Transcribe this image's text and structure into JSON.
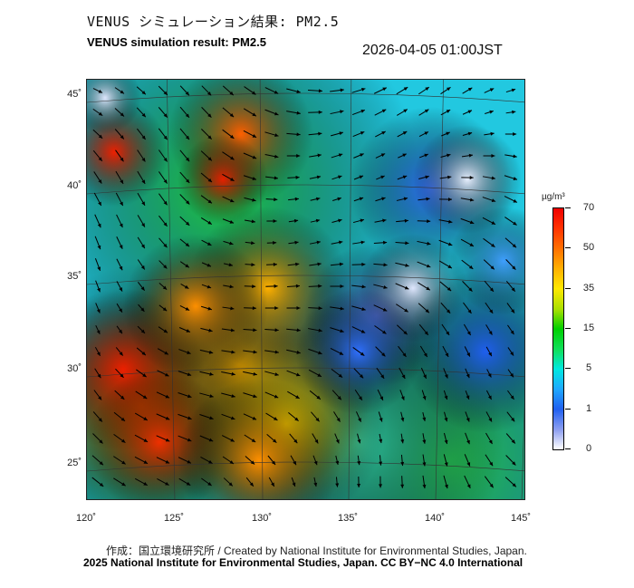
{
  "header": {
    "title_ja": "VENUS シミュレーション結果: PM2.5",
    "title_en": "VENUS simulation result: PM2.5",
    "timestamp": "2026-04-05 01:00JST"
  },
  "map": {
    "lat_labels": [
      "45˚",
      "40˚",
      "35˚",
      "30˚",
      "25˚"
    ],
    "lon_labels": [
      "120˚",
      "125˚",
      "130˚",
      "135˚",
      "140˚",
      "145˚"
    ]
  },
  "colorbar": {
    "unit": "µg/m³",
    "ticks": [
      "70",
      "50",
      "35",
      "15",
      "5",
      "1",
      "0"
    ],
    "colors": [
      "#f00000",
      "#ff7000",
      "#ffe800",
      "#00d000",
      "#00e8e0",
      "#2060f0",
      "#ffffff"
    ]
  },
  "footer": {
    "credit_ja": "作成：国立環境研究所 / Created by National Institute for Environmental Studies, Japan.",
    "copyright": "2025 National Institute for Environmental Studies, Japan. CC BY−NC 4.0 International"
  }
}
